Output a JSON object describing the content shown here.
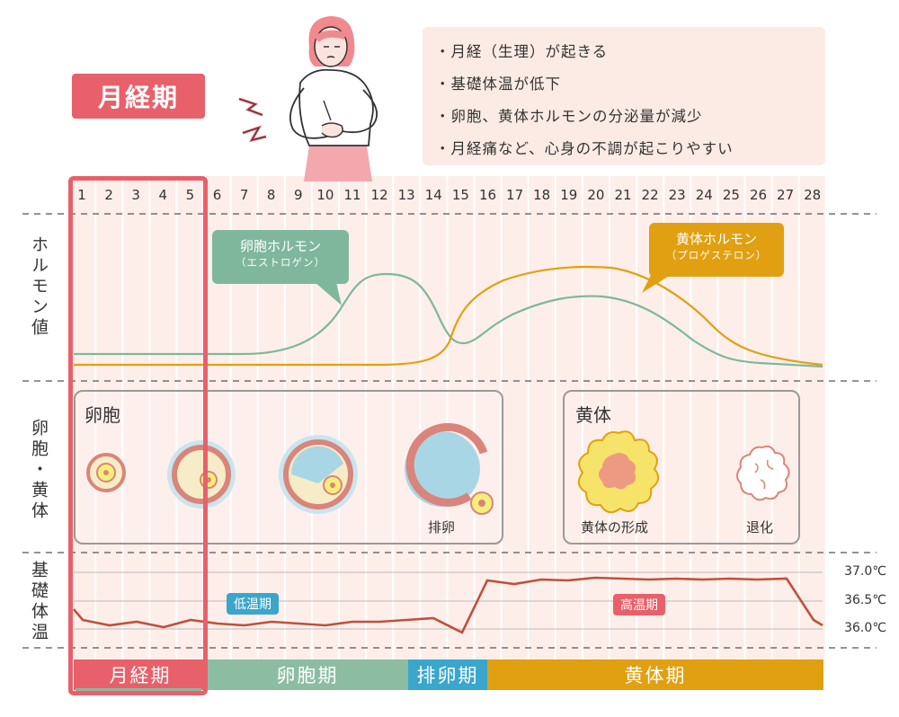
{
  "phase_title": "月経期",
  "bullets": [
    "・月経（生理）が起きる",
    "・基礎体温が低下",
    "・卵胞、黄体ホルモンの分泌量が減少",
    "・月経痛など、心身の不調が起こりやすい"
  ],
  "days": [
    "1",
    "2",
    "3",
    "4",
    "5",
    "6",
    "7",
    "8",
    "9",
    "10",
    "11",
    "12",
    "13",
    "14",
    "15",
    "16",
    "17",
    "18",
    "19",
    "20",
    "21",
    "22",
    "23",
    "24",
    "25",
    "26",
    "27",
    "28"
  ],
  "rows": {
    "hormone": "ホルモン値",
    "follicle": "卵胞・黄体",
    "temperature": "基礎体温"
  },
  "hormones": {
    "estrogen": {
      "name": "卵胞ホルモン",
      "sub": "（エストロゲン）",
      "color": "#7fb79d"
    },
    "progesterone": {
      "name": "黄体ホルモン",
      "sub": "（プロゲステロン）",
      "color": "#e0a011"
    }
  },
  "follicle_box": {
    "title": "卵胞",
    "ovulation_label": "排卵"
  },
  "corpus_box": {
    "title": "黄体",
    "formation_label": "黄体の形成",
    "regression_label": "退化"
  },
  "temperature": {
    "ticks": [
      "37.0℃",
      "36.5℃",
      "36.0℃"
    ],
    "low_label": "低温期",
    "high_label": "高温期",
    "line_color": "#c0503c",
    "low_color": "#3aa6cc",
    "high_color": "#e8606a"
  },
  "phases": [
    {
      "label": "月経期",
      "color": "#e8606a"
    },
    {
      "label": "卵胞期",
      "color": "#8cbda3"
    },
    {
      "label": "排卵期",
      "color": "#3aa6cc"
    },
    {
      "label": "黄体期",
      "color": "#e0a011"
    }
  ],
  "icons": [
    "woman-cramp-icon",
    "pain-bolt-icon",
    "follicle-icon",
    "corpus-luteum-icon"
  ]
}
